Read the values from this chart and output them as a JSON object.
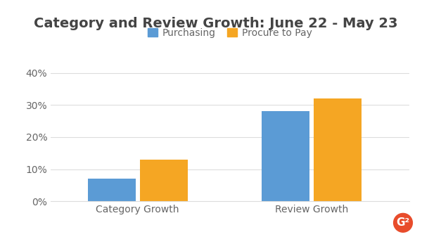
{
  "title": "Category and Review Growth: June 22 - May 23",
  "title_fontsize": 14,
  "title_color": "#444444",
  "categories": [
    "Category Growth",
    "Review Growth"
  ],
  "series": [
    {
      "name": "Purchasing",
      "values": [
        0.07,
        0.28
      ],
      "color": "#5B9BD5"
    },
    {
      "name": "Procure to Pay",
      "values": [
        0.13,
        0.32
      ],
      "color": "#F5A623"
    }
  ],
  "ylim": [
    0,
    0.42
  ],
  "yticks": [
    0.0,
    0.1,
    0.2,
    0.3,
    0.4
  ],
  "ytick_labels": [
    "0%",
    "10%",
    "20%",
    "30%",
    "40%"
  ],
  "background_color": "#ffffff",
  "grid_color": "#dddddd",
  "bar_width": 0.22,
  "group_positions": [
    0.3,
    1.1
  ],
  "legend_fontsize": 10,
  "tick_fontsize": 10,
  "tick_color": "#666666",
  "g2_logo_color": "#E84C2B",
  "xlim": [
    -0.1,
    1.55
  ]
}
